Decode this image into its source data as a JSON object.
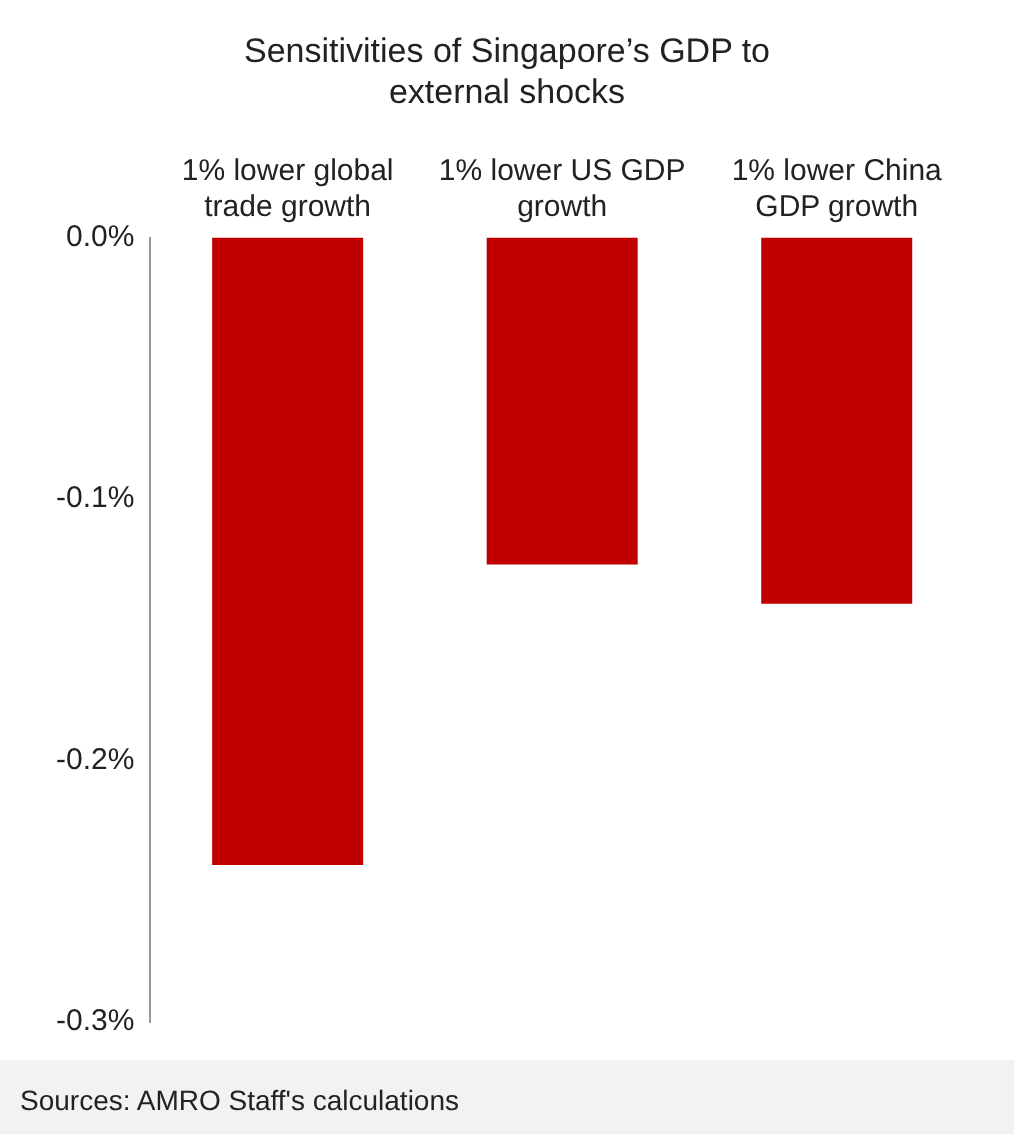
{
  "chart_data": {
    "type": "bar",
    "title": "Sensitivities of Singapore’s GDP to external shocks",
    "categories": [
      "1% lower global trade growth",
      "1% lower US GDP growth",
      "1% lower China GDP growth"
    ],
    "values": [
      -0.24,
      -0.125,
      -0.14
    ],
    "color": "#c00000",
    "ylim": [
      -0.3,
      0
    ],
    "yticks": [
      {
        "value": 0,
        "label": "0.0%"
      },
      {
        "value": -0.1,
        "label": "-0.1%"
      },
      {
        "value": -0.2,
        "label": "-0.2%"
      },
      {
        "value": -0.3,
        "label": "-0.3%"
      }
    ],
    "grid": false,
    "legend": false,
    "annotations": [
      "Sources: AMRO Staff's calculations"
    ]
  }
}
